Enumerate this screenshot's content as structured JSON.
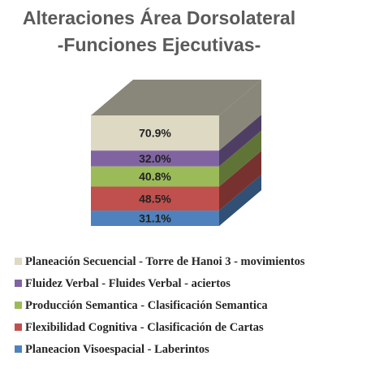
{
  "chart_data": {
    "type": "bar",
    "subtype": "3d-stacked-column",
    "title": [
      "Alteraciones Área Dorsolateral",
      "-Funciones Ejecutivas-"
    ],
    "series": [
      {
        "name": "Planeacion Visoespacial - Laberintos",
        "value": 31.1,
        "label": "31.1%",
        "color": "#4f81bd"
      },
      {
        "name": "Flexibilidad Cognitiva - Clasificación de Cartas",
        "value": 48.5,
        "label": "48.5%",
        "color": "#c0504d"
      },
      {
        "name": "Producción Semantica - Clasificación Semantica",
        "value": 40.8,
        "label": "40.8%",
        "color": "#9bbb59"
      },
      {
        "name": "Fluidez Verbal - Fluides Verbal - aciertos",
        "value": 32.0,
        "label": "32.0%",
        "color": "#8064a2"
      },
      {
        "name": "Planeación Secuencial - Torre de Hanoi 3 - movimientos",
        "value": 70.9,
        "label": "70.9%",
        "color": "#ddd9c3"
      }
    ],
    "legend_position": "bottom",
    "legend_order": [
      4,
      3,
      2,
      1,
      0
    ],
    "grid": false
  }
}
